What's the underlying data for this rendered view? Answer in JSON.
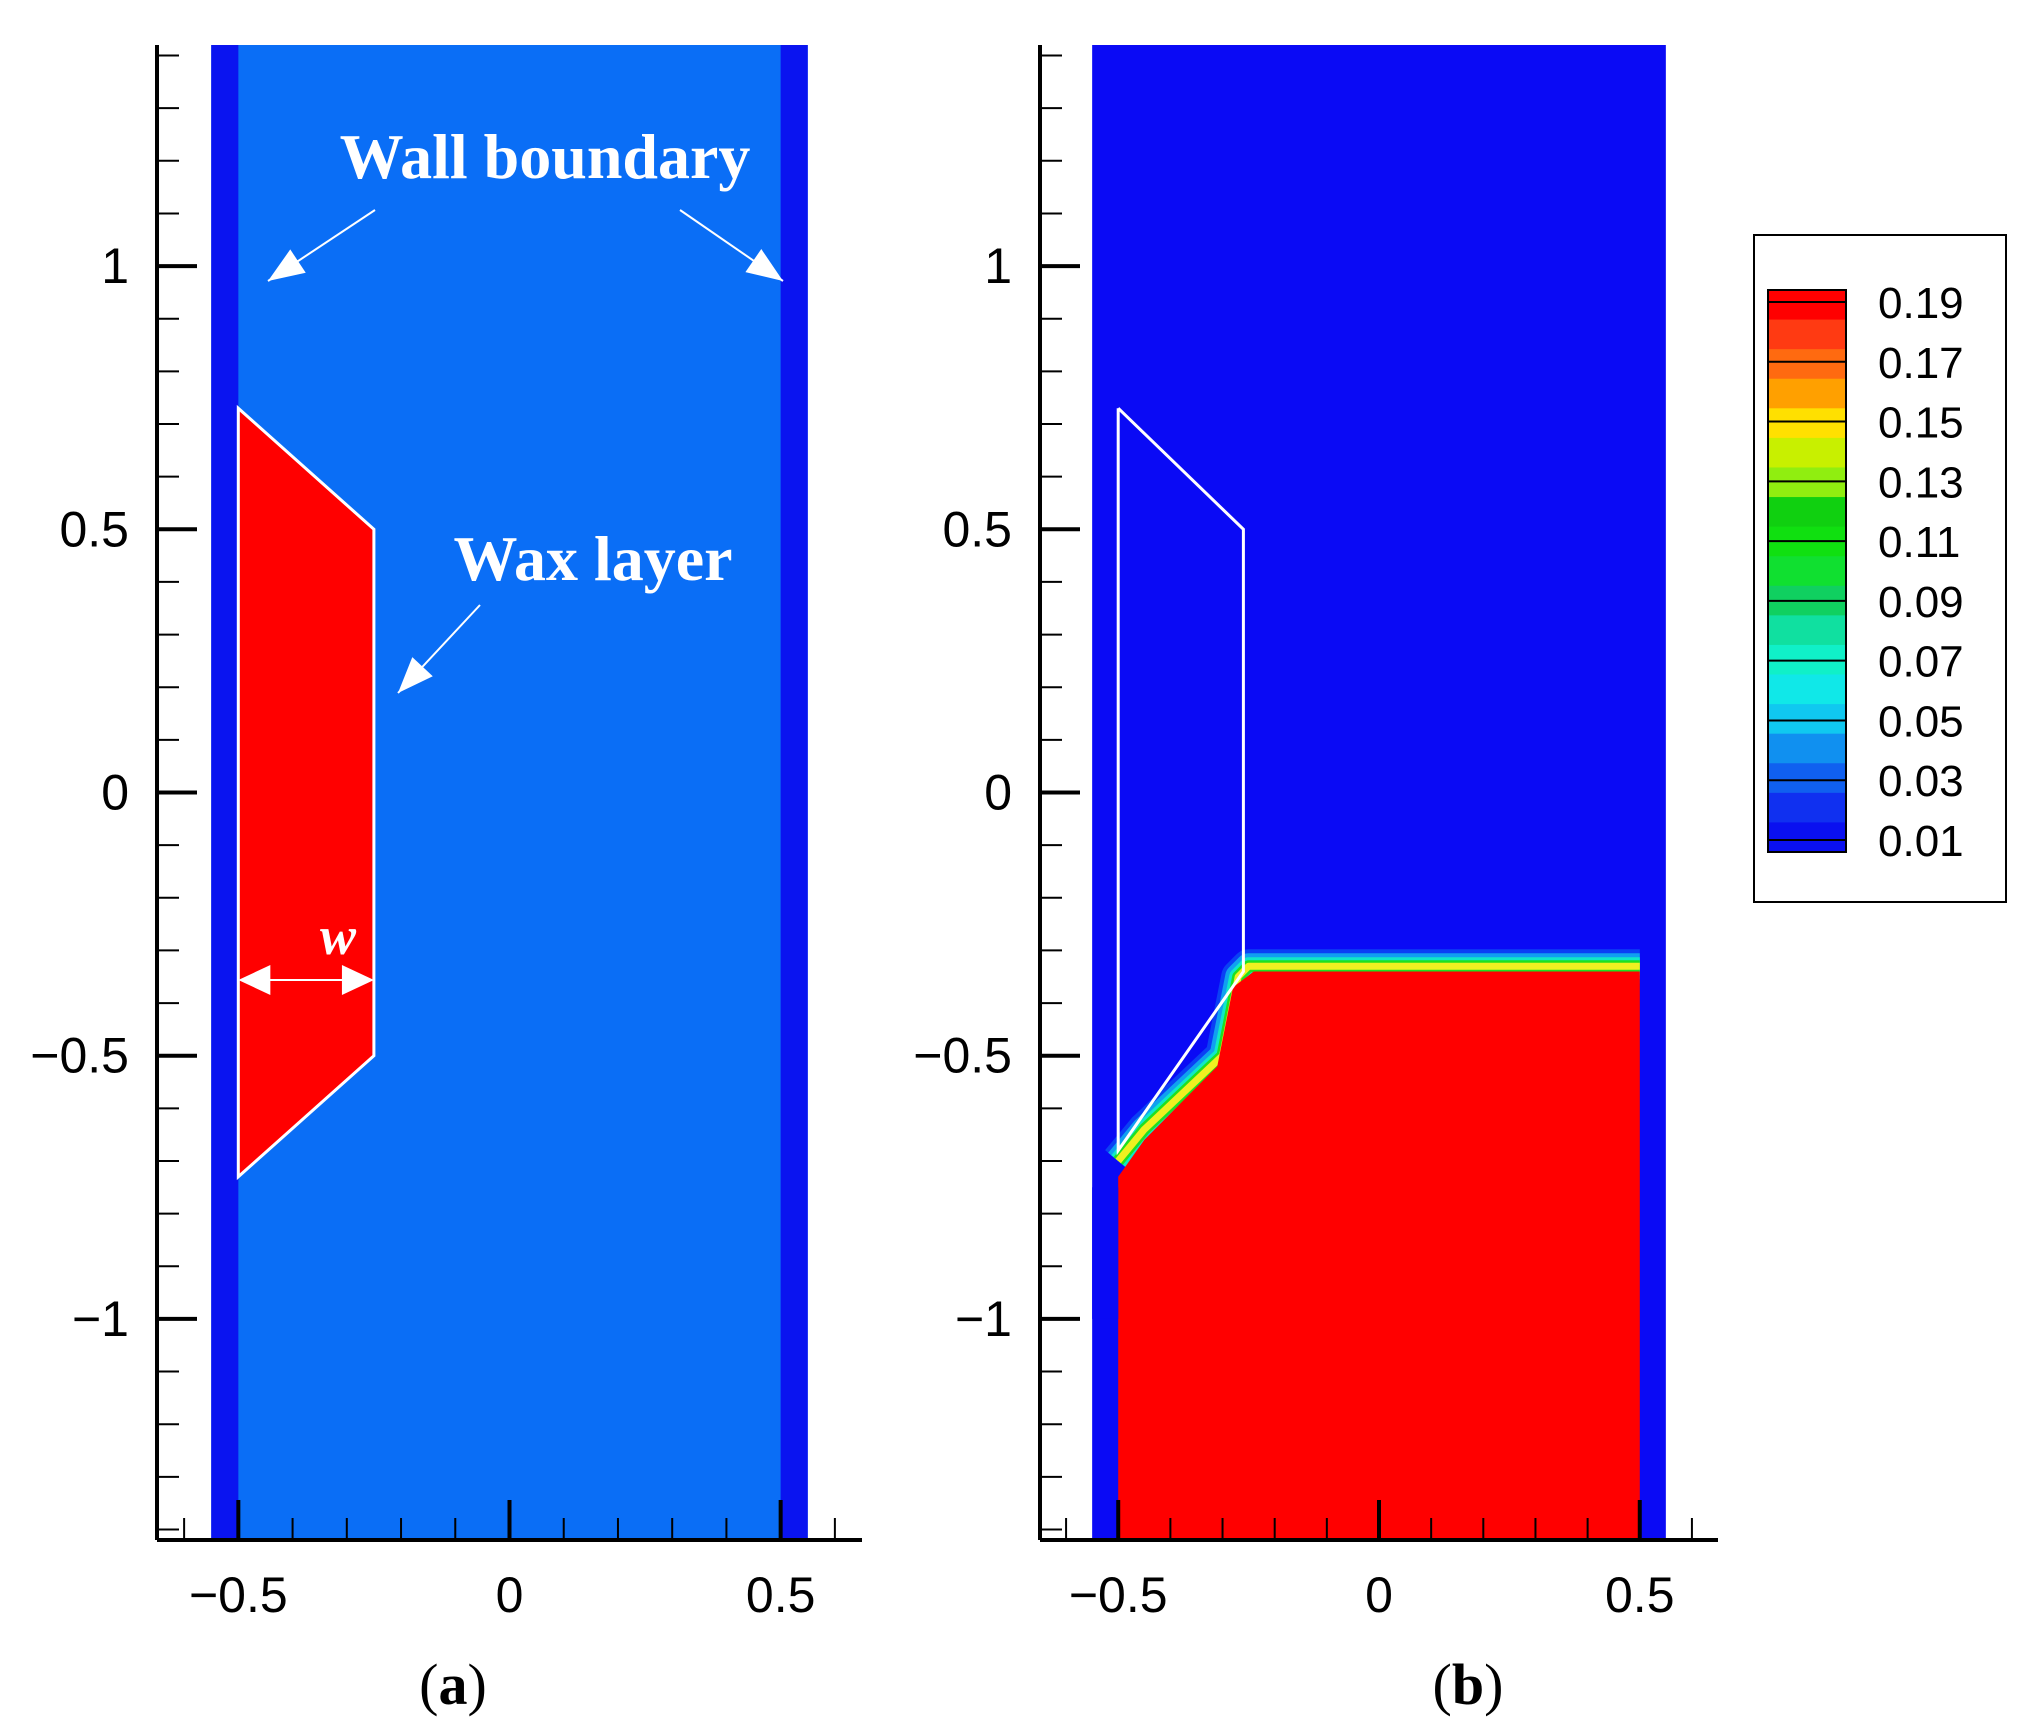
{
  "chart_data": [
    {
      "panel": "a",
      "type": "contour",
      "x_ticks": [
        -0.5,
        0,
        0.5
      ],
      "y_ticks": [
        1,
        0.5,
        0,
        -0.5,
        -1
      ],
      "x_tick_labels": [
        "−0.5",
        "0",
        "0.5"
      ],
      "y_tick_labels": [
        "1",
        "0.5",
        "0",
        "−0.5",
        "−1"
      ],
      "xlim": [
        -0.65,
        0.65
      ],
      "ylim": [
        -1.42,
        1.42
      ],
      "domain_x": [
        -0.55,
        0.55
      ],
      "wall_x_ranges": [
        [
          -0.55,
          -0.5
        ],
        [
          0.5,
          0.55
        ]
      ],
      "wax_polygon": [
        [
          -0.5,
          0.73
        ],
        [
          -0.25,
          0.5
        ],
        [
          -0.25,
          -0.5
        ],
        [
          -0.5,
          -0.73
        ]
      ],
      "colors": {
        "wall": "#0a14f0",
        "fluid": "#0a6ef6",
        "wax": "#ff0000"
      },
      "annotations": {
        "wall": "Wall boundary",
        "wax": "Wax layer",
        "w": "w"
      }
    },
    {
      "panel": "b",
      "type": "contour",
      "x_ticks": [
        -0.5,
        0,
        0.5
      ],
      "y_ticks": [
        1,
        0.5,
        0,
        -0.5,
        -1
      ],
      "x_tick_labels": [
        "−0.5",
        "0",
        "0.5"
      ],
      "y_tick_labels": [
        "1",
        "0.5",
        "0",
        "−0.5",
        "−1"
      ],
      "xlim": [
        -0.65,
        0.65
      ],
      "ylim": [
        -1.42,
        1.42
      ],
      "domain_x": [
        -0.55,
        0.55
      ],
      "wax_outline": [
        [
          -0.5,
          0.73
        ],
        [
          -0.26,
          0.5
        ],
        [
          -0.26,
          -0.34
        ],
        [
          -0.5,
          -0.68
        ]
      ],
      "front_path": [
        [
          -0.5,
          -0.7
        ],
        [
          -0.45,
          -0.64
        ],
        [
          -0.3,
          -0.5
        ],
        [
          -0.27,
          -0.35
        ],
        [
          -0.25,
          -0.33
        ],
        [
          0.5,
          -0.33
        ]
      ],
      "filled_region": [
        [
          -0.5,
          -0.73
        ],
        [
          -0.45,
          -0.66
        ],
        [
          -0.31,
          -0.52
        ],
        [
          -0.28,
          -0.37
        ],
        [
          -0.24,
          -0.34
        ],
        [
          0.5,
          -0.34
        ],
        [
          0.5,
          -1.42
        ],
        [
          -0.5,
          -1.42
        ]
      ],
      "colors": {
        "background": "#0a0af5",
        "filled": "#ff0000"
      }
    }
  ],
  "legend": {
    "levels": [
      "0.19",
      "0.17",
      "0.15",
      "0.13",
      "0.11",
      "0.09",
      "0.07",
      "0.05",
      "0.03",
      "0.01"
    ],
    "band_colors": [
      "#ff0000",
      "#ff3a12",
      "#ff6a10",
      "#ffa000",
      "#ffe000",
      "#c8f000",
      "#90ee10",
      "#10d010",
      "#10e010",
      "#10e030",
      "#10d060",
      "#10e0a0",
      "#10f0c8",
      "#10e8e8",
      "#10c8f0",
      "#1090f0",
      "#1060f0",
      "#1030f0",
      "#0a10f0"
    ]
  },
  "panel_labels": {
    "a": "a",
    "b": "b"
  }
}
